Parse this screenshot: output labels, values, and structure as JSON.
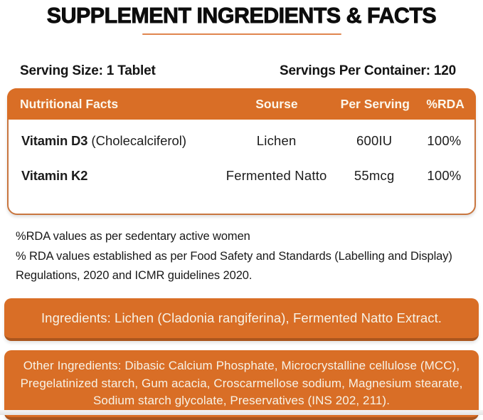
{
  "page": {
    "title": "SUPPLEMENT INGREDIENTS & FACTS"
  },
  "serving": {
    "size_label": "Serving Size: 1 Tablet",
    "per_container_label": "Servings Per Container: 120"
  },
  "table": {
    "headers": {
      "name": "Nutritional Facts",
      "source": "Sourse",
      "per_serving": "Per Serving",
      "rda": "%RDA"
    },
    "rows": [
      {
        "name": "Vitamin D3",
        "name_suffix": " (Cholecalciferol)",
        "source": "Lichen",
        "per_serving": "600IU",
        "rda": "100%"
      },
      {
        "name": "Vitamin K2",
        "name_suffix": "",
        "source": "Fermented Natto",
        "per_serving": "55mcg",
        "rda": "100%"
      }
    ]
  },
  "footnotes": {
    "line1": "%RDA values as per sedentary active women",
    "line2": "% RDA values established as per Food Safety and Standards (Labelling and Display) Regulations, 2020 and ICMR guidelines 2020."
  },
  "ingredients_box": {
    "text": "Ingredients: Lichen (Cladonia rangiferina), Fermented Natto Extract."
  },
  "other_ingredients_box": {
    "text": "Other Ingredients: Dibasic Calcium Phosphate, Microcrystalline cellulose (MCC), Pregelatinized starch, Gum acacia, Croscarmellose sodium, Magnesium stearate, Sodium starch glycolate, Preservatives (INS 202, 211)."
  },
  "colors": {
    "accent_orange": "#d96e26",
    "accent_orange_dark": "#aa561e",
    "table_border": "#c9763f",
    "underline": "#e0854e",
    "box_text_cream": "#f7f2e6",
    "text_dark": "#191919"
  }
}
